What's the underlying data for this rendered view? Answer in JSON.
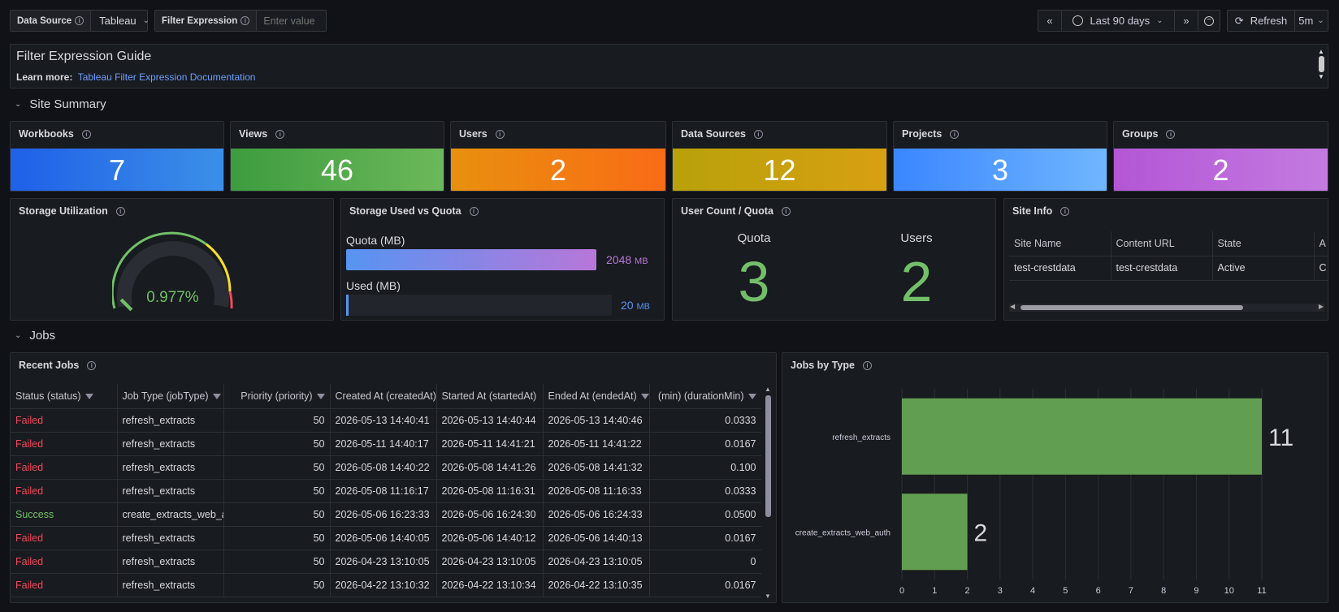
{
  "toolbar": {
    "datasource_label": "Data Source",
    "datasource_value": "Tableau",
    "filter_label": "Filter Expression",
    "filter_placeholder": "Enter value",
    "time_range": "Last 90 days",
    "refresh_label": "Refresh",
    "refresh_interval": "5m"
  },
  "guide": {
    "title": "Filter Expression Guide",
    "learn_more": "Learn more:",
    "link_text": "Tableau Filter Expression Documentation"
  },
  "sections": {
    "site_summary": "Site Summary",
    "jobs": "Jobs"
  },
  "stats": [
    {
      "title": "Workbooks",
      "value": "7",
      "gradient": [
        "#1f60e8",
        "#3b8fe8"
      ]
    },
    {
      "title": "Views",
      "value": "46",
      "gradient": [
        "#3d9c3f",
        "#6cb85a"
      ]
    },
    {
      "title": "Users",
      "value": "2",
      "gradient": [
        "#e8900e",
        "#fa6b16"
      ]
    },
    {
      "title": "Data Sources",
      "value": "12",
      "gradient": [
        "#b8a10a",
        "#d8a012"
      ]
    },
    {
      "title": "Projects",
      "value": "3",
      "gradient": [
        "#3a86ff",
        "#70b6ff"
      ]
    },
    {
      "title": "Groups",
      "value": "2",
      "gradient": [
        "#b356d6",
        "#c47ae0"
      ]
    }
  ],
  "storage_util": {
    "title": "Storage Utilization",
    "value": "0.977%",
    "fraction": 0.00977
  },
  "storage_quota": {
    "title": "Storage Used vs Quota",
    "quota_label": "Quota (MB)",
    "quota_value": "2048",
    "unit": "MB",
    "used_label": "Used (MB)",
    "used_value": "20",
    "used_fraction": 0.00977
  },
  "user_quota": {
    "title": "User Count / Quota",
    "quota_label": "Quota",
    "quota_value": "3",
    "users_label": "Users",
    "users_value": "2"
  },
  "site_info": {
    "title": "Site Info",
    "headers": [
      "Site Name",
      "Content URL",
      "State",
      "A"
    ],
    "row": [
      "test-crestdata",
      "test-crestdata",
      "Active",
      "C"
    ]
  },
  "recent_jobs": {
    "title": "Recent Jobs",
    "headers": [
      "Status (status)",
      "Job Type (jobType)",
      "Priority (priority)",
      "Created At (createdAt)",
      "Started At (startedAt)",
      "Ended At (endedAt)",
      "(min) (durationMin)"
    ],
    "rows": [
      [
        "Failed",
        "refresh_extracts",
        "50",
        "2026-05-13 14:40:41",
        "2026-05-13 14:40:44",
        "2026-05-13 14:40:46",
        "0.0333"
      ],
      [
        "Failed",
        "refresh_extracts",
        "50",
        "2026-05-11 14:40:17",
        "2026-05-11 14:41:21",
        "2026-05-11 14:41:22",
        "0.0167"
      ],
      [
        "Failed",
        "refresh_extracts",
        "50",
        "2026-05-08 14:40:22",
        "2026-05-08 14:41:26",
        "2026-05-08 14:41:32",
        "0.100"
      ],
      [
        "Failed",
        "refresh_extracts",
        "50",
        "2026-05-08 11:16:17",
        "2026-05-08 11:16:31",
        "2026-05-08 11:16:33",
        "0.0333"
      ],
      [
        "Success",
        "create_extracts_web_a",
        "50",
        "2026-05-06 16:23:33",
        "2026-05-06 16:24:30",
        "2026-05-06 16:24:33",
        "0.0500"
      ],
      [
        "Failed",
        "refresh_extracts",
        "50",
        "2026-05-06 14:40:05",
        "2026-05-06 14:40:12",
        "2026-05-06 14:40:13",
        "0.0167"
      ],
      [
        "Failed",
        "refresh_extracts",
        "50",
        "2026-04-23 13:10:05",
        "2026-04-23 13:10:05",
        "2026-04-23 13:10:05",
        "0"
      ],
      [
        "Failed",
        "refresh_extracts",
        "50",
        "2026-04-22 13:10:32",
        "2026-04-22 13:10:34",
        "2026-04-22 13:10:35",
        "0.0167"
      ]
    ]
  },
  "jobs_by_type": {
    "title": "Jobs by Type",
    "chart_data": {
      "type": "bar",
      "orientation": "horizontal",
      "categories": [
        "refresh_extracts",
        "create_extracts_web_auth"
      ],
      "values": [
        11,
        2
      ],
      "xlim": [
        0,
        11
      ],
      "xticks": [
        "0",
        "1",
        "2",
        "3",
        "4",
        "5",
        "6",
        "7",
        "8",
        "9",
        "10",
        "11"
      ],
      "color": "#629e51"
    }
  }
}
